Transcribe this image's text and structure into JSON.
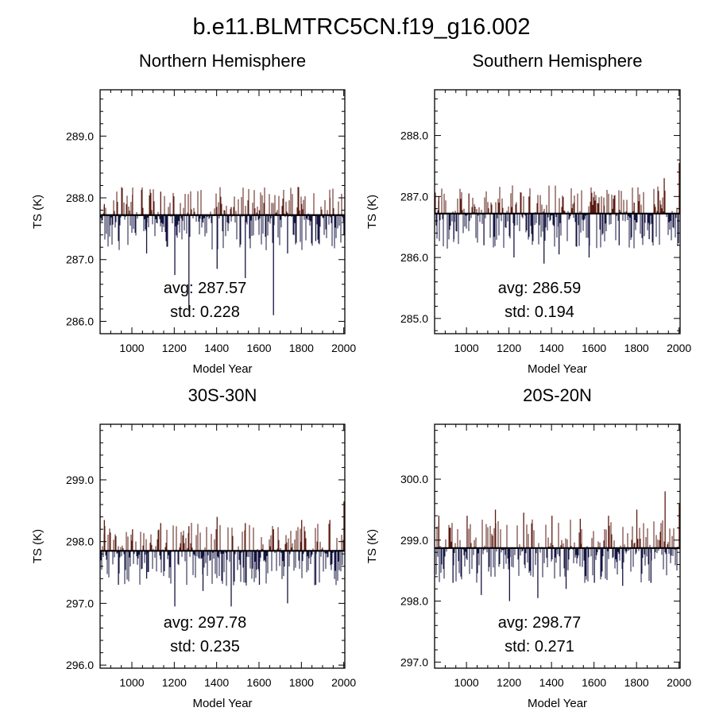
{
  "title": "b.e11.BLMTRC5CN.f19_g16.002",
  "chart_data": [
    {
      "type": "bar",
      "title": "Northern Hemisphere",
      "xlabel": "Model Year",
      "ylabel": "TS (K)",
      "xlim": [
        850,
        2005
      ],
      "ylim": [
        285.8,
        289.75
      ],
      "xticks": [
        1000,
        1200,
        1400,
        1600,
        1800,
        2000
      ],
      "yticks": [
        "289.0",
        "288.0",
        "287.0",
        "286.0"
      ],
      "baseline": 287.72,
      "avg_label": "avg: 287.57",
      "std_label": "std:  0.228",
      "series": [
        {
          "values": [
            287.9,
            287.3,
            288.05,
            287.1,
            288.1,
            286.75,
            286.2,
            287.6,
            286.85,
            287.85,
            286.7,
            287.8,
            286.1,
            287.1,
            287.9,
            287.3,
            288.0,
            287.4
          ]
        }
      ],
      "line_colors": {
        "above": "#5a1a10",
        "below": "#141440"
      }
    },
    {
      "type": "bar",
      "title": "Southern Hemisphere",
      "xlabel": "Model Year",
      "ylabel": "TS (K)",
      "xlim": [
        850,
        2005
      ],
      "ylim": [
        284.75,
        288.75
      ],
      "xticks": [
        1000,
        1200,
        1400,
        1600,
        1800,
        2000
      ],
      "yticks": [
        "288.0",
        "287.0",
        "286.0",
        "285.0"
      ],
      "baseline": 286.72,
      "avg_label": "avg: 286.59",
      "std_label": "std:  0.194",
      "series": [
        {
          "values": [
            287.0,
            286.3,
            287.05,
            286.2,
            286.9,
            286.0,
            287.0,
            285.9,
            286.05,
            286.9,
            286.0,
            286.85,
            286.2,
            286.9,
            286.3,
            287.3,
            287.55
          ]
        }
      ],
      "line_colors": {
        "above": "#5a1a10",
        "below": "#141440"
      }
    },
    {
      "type": "bar",
      "title": "30S-30N",
      "xlabel": "Model Year",
      "ylabel": "TS (K)",
      "xlim": [
        850,
        2005
      ],
      "ylim": [
        295.95,
        299.9
      ],
      "xticks": [
        1000,
        1200,
        1400,
        1600,
        1800,
        2000
      ],
      "yticks": [
        "299.0",
        "298.0",
        "297.0",
        "296.0"
      ],
      "baseline": 297.85,
      "avg_label": "avg: 297.78",
      "std_label": "std:  0.235",
      "series": [
        {
          "values": [
            298.35,
            297.3,
            298.2,
            297.4,
            298.3,
            296.95,
            298.25,
            297.2,
            298.4,
            296.95,
            298.3,
            297.3,
            298.2,
            297.0,
            298.35,
            297.3,
            298.35,
            298.65
          ]
        }
      ],
      "line_colors": {
        "above": "#5a1a10",
        "below": "#141440"
      }
    },
    {
      "type": "bar",
      "title": "20S-20N",
      "xlabel": "Model Year",
      "ylabel": "TS (K)",
      "xlim": [
        850,
        2005
      ],
      "ylim": [
        296.9,
        300.9
      ],
      "xticks": [
        1000,
        1200,
        1400,
        1600,
        1800,
        2000
      ],
      "yticks": [
        "300.0",
        "299.0",
        "298.0",
        "297.0"
      ],
      "baseline": 298.87,
      "avg_label": "avg: 298.77",
      "std_label": "std:  0.271",
      "series": [
        {
          "values": [
            299.4,
            298.3,
            299.4,
            298.1,
            299.5,
            298.0,
            299.45,
            298.05,
            299.4,
            298.2,
            299.35,
            298.3,
            299.4,
            298.25,
            299.5,
            298.3,
            299.8,
            299.6
          ]
        }
      ],
      "line_colors": {
        "above": "#5a1a10",
        "below": "#141440"
      }
    }
  ]
}
